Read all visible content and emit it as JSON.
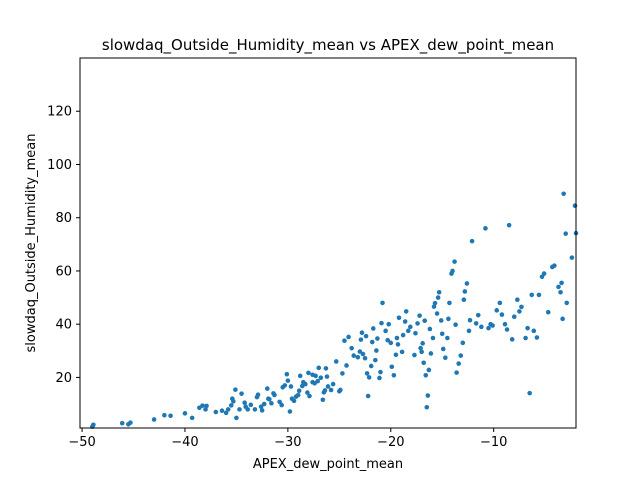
{
  "chart_data": {
    "type": "scatter",
    "title": "slowdaq_Outside_Humidity_mean vs APEX_dew_point_mean",
    "xlabel": "APEX_dew_point_mean",
    "ylabel": "slowdaq_Outside_Humidity_mean",
    "xlim": [
      -50.2,
      -2.0
    ],
    "ylim": [
      1.0,
      140.0
    ],
    "xticks": [
      -50,
      -40,
      -30,
      -20,
      -10
    ],
    "xtick_labels": [
      "−50",
      "−40",
      "−30",
      "−20",
      "−10"
    ],
    "yticks": [
      20,
      40,
      60,
      80,
      100,
      120
    ],
    "ytick_labels": [
      "20",
      "40",
      "60",
      "80",
      "100",
      "120"
    ],
    "grid": false,
    "legend": "none",
    "marker_color": "#1f77b4",
    "points": [
      [
        -49.0,
        1.5
      ],
      [
        -48.9,
        2.2
      ],
      [
        -46.1,
        2.8
      ],
      [
        -45.5,
        2.4
      ],
      [
        -45.3,
        3.0
      ],
      [
        -43.0,
        4.2
      ],
      [
        -42.0,
        5.8
      ],
      [
        -41.4,
        5.6
      ],
      [
        -40.0,
        6.5
      ],
      [
        -39.3,
        4.8
      ],
      [
        -38.6,
        8.6
      ],
      [
        -38.3,
        9.4
      ],
      [
        -38.0,
        8.0
      ],
      [
        -37.9,
        9.3
      ],
      [
        -37.0,
        7.0
      ],
      [
        -36.4,
        7.5
      ],
      [
        -36.0,
        6.7
      ],
      [
        -35.8,
        8.0
      ],
      [
        -35.5,
        9.5
      ],
      [
        -35.4,
        12.0
      ],
      [
        -35.3,
        11.0
      ],
      [
        -35.1,
        15.4
      ],
      [
        -35.0,
        4.8
      ],
      [
        -34.7,
        8.0
      ],
      [
        -34.5,
        13.9
      ],
      [
        -34.2,
        10.5
      ],
      [
        -34.1,
        9.0
      ],
      [
        -33.9,
        8.0
      ],
      [
        -33.6,
        9.7
      ],
      [
        -33.2,
        8.0
      ],
      [
        -33.0,
        12.6
      ],
      [
        -32.9,
        13.5
      ],
      [
        -32.6,
        9.0
      ],
      [
        -32.5,
        7.6
      ],
      [
        -32.3,
        10.0
      ],
      [
        -32.0,
        15.8
      ],
      [
        -31.9,
        12.0
      ],
      [
        -31.8,
        11.8
      ],
      [
        -31.6,
        10.3
      ],
      [
        -31.4,
        14.0
      ],
      [
        -31.3,
        13.4
      ],
      [
        -30.8,
        10.8
      ],
      [
        -30.6,
        9.6
      ],
      [
        -30.5,
        16.3
      ],
      [
        -30.3,
        17.0
      ],
      [
        -30.0,
        18.8
      ],
      [
        -29.8,
        7.2
      ],
      [
        -29.6,
        12.0
      ],
      [
        -29.4,
        11.2
      ],
      [
        -29.2,
        12.8
      ],
      [
        -29.0,
        13.4
      ],
      [
        -28.9,
        15.0
      ],
      [
        -28.8,
        20.6
      ],
      [
        -28.6,
        16.8
      ],
      [
        -28.5,
        18.2
      ],
      [
        -28.3,
        17.5
      ],
      [
        -28.1,
        14.3
      ],
      [
        -28.0,
        21.7
      ],
      [
        -27.9,
        13.0
      ],
      [
        -27.6,
        18.2
      ],
      [
        -27.4,
        17.8
      ],
      [
        -27.3,
        20.6
      ],
      [
        -27.1,
        18.6
      ],
      [
        -27.0,
        23.6
      ],
      [
        -26.8,
        19.9
      ],
      [
        -26.6,
        11.6
      ],
      [
        -26.5,
        14.4
      ],
      [
        -26.4,
        15.1
      ],
      [
        -26.3,
        23.4
      ],
      [
        -26.1,
        16.6
      ],
      [
        -25.8,
        15.3
      ],
      [
        -25.6,
        17.5
      ],
      [
        -25.3,
        26.0
      ],
      [
        -25.0,
        14.8
      ],
      [
        -24.9,
        15.3
      ],
      [
        -24.7,
        21.5
      ],
      [
        -24.3,
        24.5
      ],
      [
        -24.1,
        35.2
      ],
      [
        -23.6,
        28.2
      ],
      [
        -23.2,
        27.6
      ],
      [
        -23.0,
        29.7
      ],
      [
        -22.9,
        34.2
      ],
      [
        -22.8,
        36.8
      ],
      [
        -22.7,
        28.8
      ],
      [
        -22.5,
        27.2
      ],
      [
        -22.3,
        21.5
      ],
      [
        -22.2,
        13.0
      ],
      [
        -22.1,
        20.0
      ],
      [
        -21.9,
        24.3
      ],
      [
        -21.8,
        33.3
      ],
      [
        -21.7,
        38.4
      ],
      [
        -21.5,
        26.5
      ],
      [
        -21.4,
        30.1
      ],
      [
        -21.3,
        34.6
      ],
      [
        -21.1,
        19.8
      ],
      [
        -21.0,
        22.0
      ],
      [
        -20.9,
        40.4
      ],
      [
        -20.8,
        48.0
      ],
      [
        -20.5,
        37.5
      ],
      [
        -20.3,
        34.0
      ],
      [
        -20.2,
        40.0
      ],
      [
        -20.0,
        33.0
      ],
      [
        -19.9,
        24.0
      ],
      [
        -19.7,
        20.8
      ],
      [
        -19.5,
        28.5
      ],
      [
        -19.4,
        34.8
      ],
      [
        -19.2,
        42.4
      ],
      [
        -18.9,
        29.6
      ],
      [
        -18.8,
        35.9
      ],
      [
        -18.5,
        44.8
      ],
      [
        -18.3,
        37.5
      ],
      [
        -18.1,
        39.0
      ],
      [
        -17.7,
        28.4
      ],
      [
        -17.6,
        36.6
      ],
      [
        -17.4,
        40.3
      ],
      [
        -17.2,
        43.2
      ],
      [
        -17.1,
        31.0
      ],
      [
        -17.0,
        29.6
      ],
      [
        -16.9,
        32.8
      ],
      [
        -16.8,
        25.5
      ],
      [
        -16.7,
        41.3
      ],
      [
        -16.6,
        20.8
      ],
      [
        -16.5,
        8.8
      ],
      [
        -16.4,
        13.2
      ],
      [
        -16.3,
        22.8
      ],
      [
        -16.2,
        38.2
      ],
      [
        -16.1,
        29.0
      ],
      [
        -15.9,
        34.8
      ],
      [
        -15.8,
        46.6
      ],
      [
        -15.7,
        47.9
      ],
      [
        -15.5,
        44.0
      ],
      [
        -15.4,
        50.0
      ],
      [
        -15.3,
        52.0
      ],
      [
        -15.1,
        41.4
      ],
      [
        -15.0,
        36.4
      ],
      [
        -14.9,
        30.7
      ],
      [
        -14.7,
        27.4
      ],
      [
        -14.5,
        34.8
      ],
      [
        -14.4,
        42.0
      ],
      [
        -14.3,
        48.0
      ],
      [
        -14.1,
        59.0
      ],
      [
        -14.0,
        60.0
      ],
      [
        -13.8,
        63.5
      ],
      [
        -13.7,
        39.8
      ],
      [
        -13.6,
        21.8
      ],
      [
        -13.4,
        25.2
      ],
      [
        -13.2,
        28.2
      ],
      [
        -13.0,
        33.0
      ],
      [
        -12.9,
        49.2
      ],
      [
        -12.8,
        52.3
      ],
      [
        -12.6,
        55.3
      ],
      [
        -12.4,
        37.5
      ],
      [
        -12.3,
        41.5
      ],
      [
        -12.1,
        71.2
      ],
      [
        -11.7,
        40.3
      ],
      [
        -11.5,
        43.4
      ],
      [
        -11.2,
        39.0
      ],
      [
        -10.8,
        76.0
      ],
      [
        -10.5,
        38.5
      ],
      [
        -10.3,
        40.0
      ],
      [
        -10.1,
        39.5
      ],
      [
        -9.7,
        45.2
      ],
      [
        -9.4,
        48.0
      ],
      [
        -9.2,
        43.6
      ],
      [
        -8.9,
        40.0
      ],
      [
        -8.7,
        38.0
      ],
      [
        -8.5,
        77.2
      ],
      [
        -8.2,
        34.3
      ],
      [
        -8.0,
        42.8
      ],
      [
        -7.7,
        49.2
      ],
      [
        -7.5,
        44.8
      ],
      [
        -7.3,
        46.5
      ],
      [
        -6.9,
        34.8
      ],
      [
        -6.7,
        38.5
      ],
      [
        -6.5,
        14.1
      ],
      [
        -6.3,
        51.0
      ],
      [
        -6.1,
        37.5
      ],
      [
        -5.8,
        35.0
      ],
      [
        -5.6,
        51.0
      ],
      [
        -5.3,
        57.8
      ],
      [
        -5.1,
        59.0
      ],
      [
        -4.7,
        44.5
      ],
      [
        -4.3,
        61.5
      ],
      [
        -4.1,
        62.0
      ],
      [
        -3.7,
        54.0
      ],
      [
        -3.5,
        52.0
      ],
      [
        -3.4,
        55.5
      ],
      [
        -3.3,
        42.0
      ],
      [
        -3.2,
        89.0
      ],
      [
        -3.0,
        74.0
      ],
      [
        -2.9,
        48.0
      ],
      [
        -2.4,
        65.0
      ],
      [
        -2.1,
        84.5
      ],
      [
        -2.0,
        74.2
      ],
      [
        -1.6,
        67.2
      ],
      [
        -30.1,
        21.2
      ],
      [
        -26.2,
        20.3
      ],
      [
        -29.7,
        16.6
      ],
      [
        -23.8,
        31.0
      ],
      [
        -19.3,
        32.4
      ],
      [
        -24.5,
        33.8
      ],
      [
        -27.6,
        21.0
      ],
      [
        -22.4,
        35.5
      ],
      [
        -18.6,
        41.0
      ]
    ]
  }
}
